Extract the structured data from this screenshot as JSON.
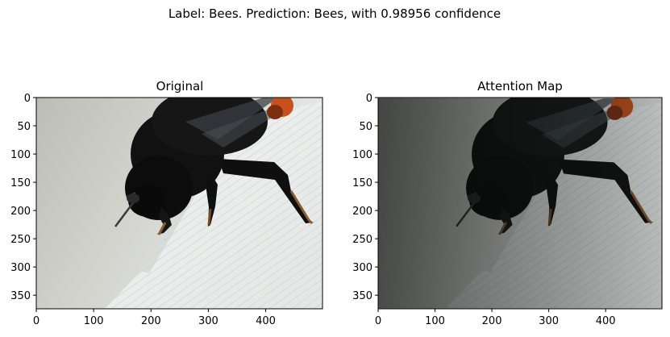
{
  "figure": {
    "suptitle": "Label: Bees. Prediction: Bees, with 0.98956 confidence"
  },
  "chart_data": [
    {
      "type": "image",
      "title": "Original",
      "xlim": [
        0,
        499
      ],
      "ylim": [
        374,
        0
      ],
      "xticks": [
        0,
        100,
        200,
        300,
        400
      ],
      "yticks": [
        0,
        50,
        100,
        150,
        200,
        250,
        300,
        350
      ],
      "xtick_labels": [
        "0",
        "100",
        "200",
        "300",
        "400"
      ],
      "ytick_labels": [
        "0",
        "50",
        "100",
        "150",
        "200",
        "250",
        "300",
        "350"
      ],
      "content": "bee-photo"
    },
    {
      "type": "image",
      "title": "Attention Map",
      "xlim": [
        0,
        499
      ],
      "ylim": [
        374,
        0
      ],
      "xticks": [
        0,
        100,
        200,
        300,
        400
      ],
      "yticks": [
        0,
        50,
        100,
        150,
        200,
        250,
        300,
        350
      ],
      "xtick_labels": [
        "0",
        "100",
        "200",
        "300",
        "400"
      ],
      "ytick_labels": [
        "0",
        "50",
        "100",
        "150",
        "200",
        "250",
        "300",
        "350"
      ],
      "content": "bee-photo-attention-overlay"
    }
  ]
}
